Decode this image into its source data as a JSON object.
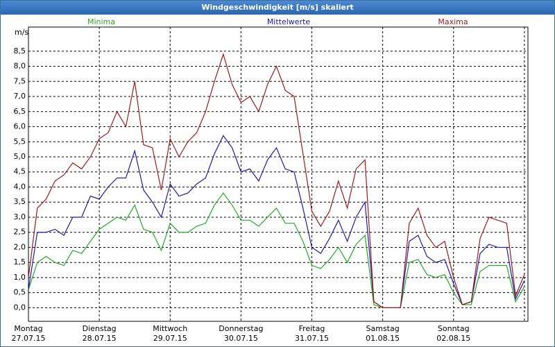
{
  "chart_data": {
    "type": "line",
    "title": "Windgeschwindigkeit [m/s] skaliert",
    "y_label": "m/s",
    "x": [
      0,
      0.125,
      0.25,
      0.375,
      0.5,
      0.625,
      0.75,
      0.875,
      1,
      1.125,
      1.25,
      1.375,
      1.5,
      1.625,
      1.75,
      1.875,
      2,
      2.125,
      2.25,
      2.375,
      2.5,
      2.625,
      2.75,
      2.875,
      3,
      3.125,
      3.25,
      3.375,
      3.5,
      3.625,
      3.75,
      3.875,
      4,
      4.125,
      4.25,
      4.375,
      4.5,
      4.625,
      4.75,
      4.875,
      5,
      5.125,
      5.25,
      5.375,
      5.5,
      5.625,
      5.75,
      5.875,
      6,
      6.125,
      6.25,
      6.375,
      6.5,
      6.625,
      6.75,
      6.875,
      7
    ],
    "series": [
      {
        "name": "Minima",
        "color": "#22aa22",
        "values": [
          0.6,
          1.5,
          1.7,
          1.5,
          1.4,
          1.9,
          1.8,
          2.2,
          2.6,
          2.8,
          3.0,
          2.9,
          3.4,
          2.6,
          2.5,
          1.9,
          2.8,
          2.5,
          2.5,
          2.7,
          2.8,
          3.4,
          3.8,
          3.4,
          2.9,
          2.9,
          2.7,
          3.0,
          3.3,
          2.8,
          2.8,
          2.2,
          1.4,
          1.3,
          1.6,
          2.0,
          1.5,
          2.1,
          2.4,
          0.1,
          0,
          0,
          0,
          1.5,
          1.6,
          1.1,
          1.0,
          1.1,
          0.5,
          0.1,
          0.1,
          1.2,
          1.4,
          1.4,
          1.4,
          0.2,
          0.7
        ]
      },
      {
        "name": "Mittelwerte",
        "color": "#1a1aaa",
        "values": [
          0.6,
          2.5,
          2.5,
          2.6,
          2.4,
          3.0,
          3.0,
          3.7,
          3.6,
          4.0,
          4.3,
          4.3,
          5.2,
          3.9,
          3.5,
          3.0,
          4.1,
          3.7,
          3.8,
          4.1,
          4.3,
          5.1,
          5.7,
          5.3,
          4.5,
          4.6,
          4.2,
          4.9,
          5.3,
          4.6,
          4.5,
          3.3,
          2.0,
          1.8,
          2.3,
          2.9,
          2.2,
          3.0,
          3.5,
          0.2,
          0,
          0,
          0,
          2.2,
          2.4,
          1.7,
          1.5,
          1.6,
          0.8,
          0.1,
          0.2,
          1.8,
          2.1,
          2.0,
          2.0,
          0.3,
          0.9
        ]
      },
      {
        "name": "Maxima",
        "color": "#a01818",
        "values": [
          1.0,
          3.3,
          3.6,
          4.2,
          4.4,
          4.8,
          4.6,
          5.0,
          5.6,
          5.8,
          6.5,
          6.0,
          7.5,
          5.4,
          5.3,
          3.9,
          5.6,
          5.0,
          5.5,
          5.8,
          6.5,
          7.5,
          8.4,
          7.4,
          6.8,
          7.0,
          6.5,
          7.4,
          8.0,
          7.2,
          7.0,
          5.1,
          3.2,
          2.7,
          3.2,
          4.2,
          3.3,
          4.6,
          4.9,
          0.2,
          0,
          0,
          0,
          2.8,
          3.3,
          2.4,
          2.0,
          2.2,
          1.0,
          0.1,
          0.2,
          2.3,
          3.0,
          2.9,
          2.8,
          0.4,
          1.1
        ]
      }
    ],
    "xlim": [
      0,
      7.05
    ],
    "xticks": [
      {
        "value": 0,
        "label": "Montag\n27.07.15"
      },
      {
        "value": 1,
        "label": "Dienstag\n28.07.15"
      },
      {
        "value": 2,
        "label": "Mittwoch\n29.07.15"
      },
      {
        "value": 3,
        "label": "Donnerstag\n30.07.15"
      },
      {
        "value": 4,
        "label": "Freitag\n31.07.15"
      },
      {
        "value": 5,
        "label": "Samstag\n01.08.15"
      },
      {
        "value": 6,
        "label": "Sonntag\n02.08.15"
      },
      7
    ],
    "ylim": [
      -0.45,
      9.3
    ],
    "yticks": [
      {
        "value": 0,
        "label": "0,0"
      },
      {
        "value": 0.5,
        "label": "0,5"
      },
      {
        "value": 1,
        "label": "1,0"
      },
      {
        "value": 1.5,
        "label": "1,5"
      },
      {
        "value": 2,
        "label": "2,0"
      },
      {
        "value": 2.5,
        "label": "2,5"
      },
      {
        "value": 3,
        "label": "3,0"
      },
      {
        "value": 3.5,
        "label": "3,5"
      },
      {
        "value": 4,
        "label": "4,0"
      },
      {
        "value": 4.5,
        "label": "4,5"
      },
      {
        "value": 5,
        "label": "5,0"
      },
      {
        "value": 5.5,
        "label": "5,5"
      },
      {
        "value": 6,
        "label": "6,0"
      },
      {
        "value": 6.5,
        "label": "6,5"
      },
      {
        "value": 7,
        "label": "7,0"
      },
      {
        "value": 7.5,
        "label": "7,5"
      },
      {
        "value": 8,
        "label": "8,0"
      },
      {
        "value": 8.5,
        "label": "8,5"
      }
    ],
    "grid": true
  }
}
